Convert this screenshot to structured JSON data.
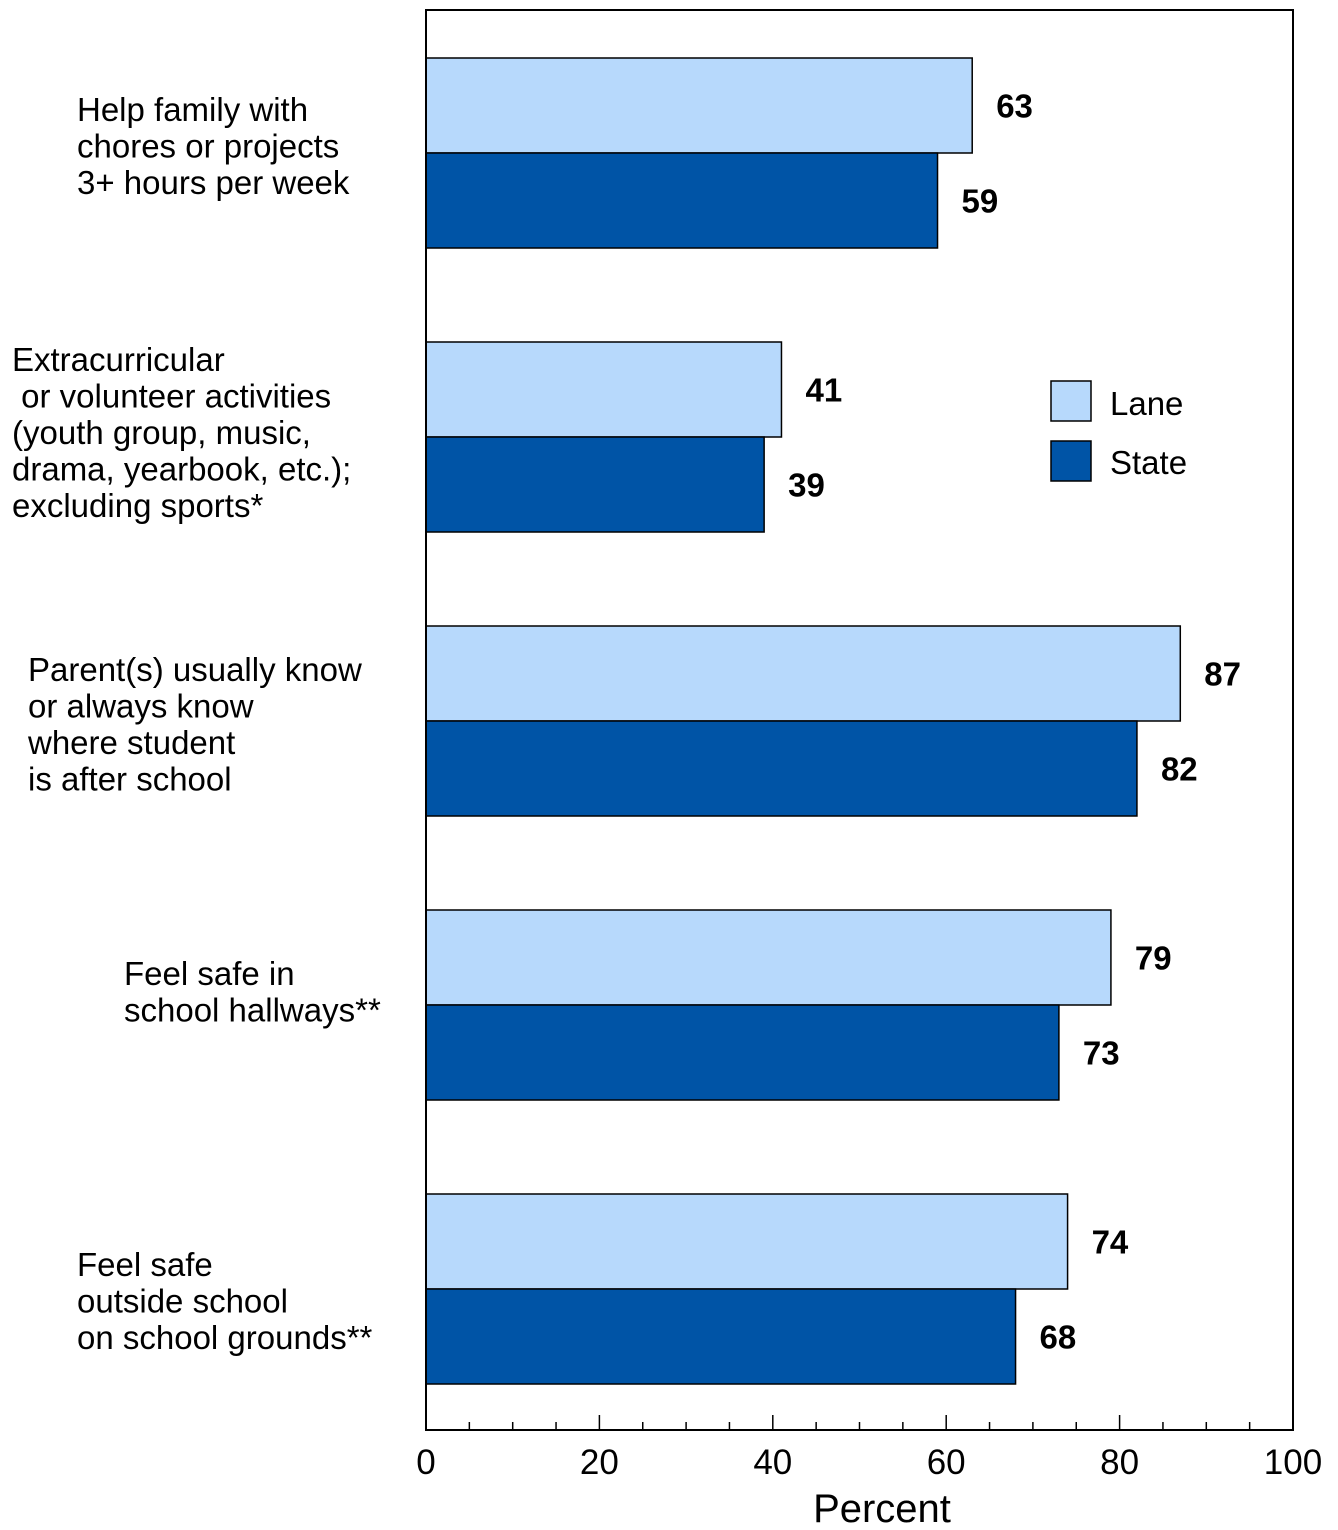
{
  "chart_data": {
    "type": "bar",
    "orientation": "horizontal",
    "categories": [
      [
        "Help family with",
        "chores or projects",
        "3+ hours per week"
      ],
      [
        "Extracurricular",
        " or volunteer activities",
        "(youth group, music,",
        "drama, yearbook, etc.);",
        "excluding sports*"
      ],
      [
        "Parent(s) usually know",
        "or always know",
        "where student",
        "is after school"
      ],
      [
        "Feel safe in",
        "school hallways**"
      ],
      [
        "Feel safe",
        "outside school",
        "on school grounds**"
      ]
    ],
    "series": [
      {
        "name": "Lane",
        "color": "#b7d9fc",
        "values": [
          63,
          41,
          87,
          79,
          74
        ]
      },
      {
        "name": "State",
        "color": "#0054a6",
        "values": [
          59,
          39,
          82,
          73,
          68
        ]
      }
    ],
    "xlabel": "Percent",
    "xlim": [
      0,
      100
    ],
    "xticks": [
      "0",
      "20",
      "40",
      "60",
      "80",
      "100"
    ],
    "grid": false,
    "legend_position": "right"
  }
}
